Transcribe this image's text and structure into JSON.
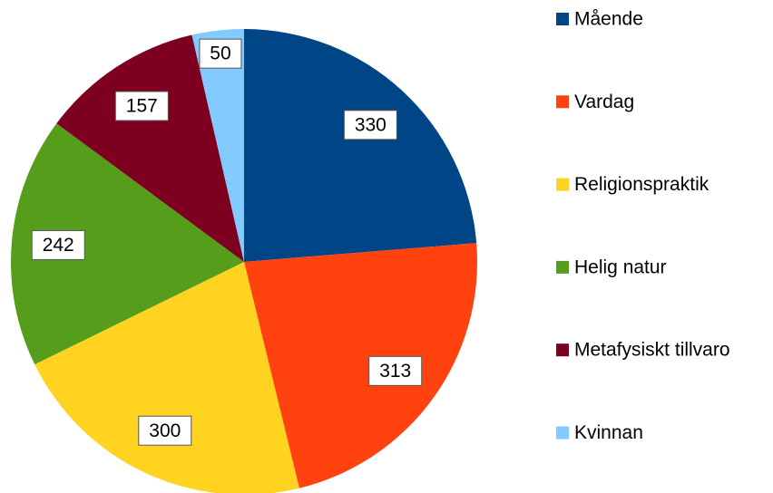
{
  "chart_data": {
    "type": "pie",
    "categories": [
      "Mående",
      "Vardag",
      "Religionspraktik",
      "Helig natur",
      "Metafysiskt tillvaro",
      "Kvinnan"
    ],
    "values": [
      330,
      313,
      300,
      242,
      157,
      50
    ],
    "colors": [
      "#004586",
      "#ff420e",
      "#ffd320",
      "#579d1c",
      "#7e0021",
      "#83caff"
    ],
    "legend": "right"
  }
}
